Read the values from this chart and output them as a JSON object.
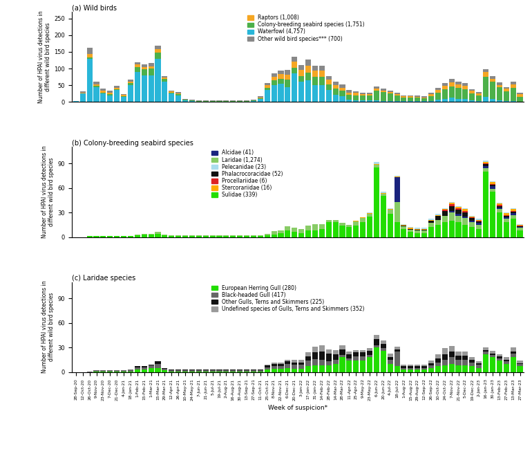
{
  "x_labels": [
    "28-Sep-20",
    "12-Oct-20",
    "26-Oct-20",
    "9-Nov-20",
    "23-Nov-20",
    "7-Dec-20",
    "21-Dec-20",
    "4-Jan-21",
    "18-Jan-21",
    "1-Feb-21",
    "15-Feb-21",
    "1-Mar-21",
    "15-Mar-21",
    "29-Mar-21",
    "12-Apr-21",
    "26-Apr-21",
    "10-May-21",
    "24-May-21",
    "7-Jun-21",
    "21-Jun-21",
    "5-Jul-21",
    "19-Jul-21",
    "2-Aug-21",
    "16-Aug-21",
    "30-Aug-21",
    "13-Sep-21",
    "27-Sep-21",
    "11-Oct-21",
    "25-Oct-21",
    "8-Nov-21",
    "22-Nov-21",
    "6-Dec-21",
    "20-Dec-21",
    "3-Jan-22",
    "17-Jan-22",
    "31-Jan-22",
    "14-Feb-22",
    "28-Feb-22",
    "14-Mar-22",
    "28-Mar-22",
    "11-Apr-22",
    "25-Apr-22",
    "9-May-22",
    "23-May-22",
    "6-Jun-22",
    "20-Jun-22",
    "4-Jul-22",
    "18-Jul-22",
    "1-Aug-22",
    "15-Aug-22",
    "29-Aug-22",
    "12-Sep-22",
    "26-Sep-22",
    "10-Oct-22",
    "24-Oct-22",
    "7-Nov-22",
    "21-Nov-22",
    "5-Dec-22",
    "19-Dec-22",
    "2-Jan-23",
    "16-Jan-23",
    "30-Jan-23",
    "13-Feb-23",
    "27-Feb-23",
    "13-Mar-23",
    "27-Mar-23"
  ],
  "panel_a": {
    "waterfowl": [
      3,
      25,
      130,
      45,
      25,
      20,
      35,
      15,
      50,
      90,
      80,
      80,
      130,
      60,
      25,
      20,
      5,
      3,
      1,
      1,
      1,
      1,
      1,
      1,
      1,
      1,
      3,
      8,
      35,
      50,
      55,
      45,
      85,
      60,
      65,
      50,
      50,
      35,
      22,
      18,
      6,
      5,
      4,
      4,
      4,
      3,
      3,
      2,
      3,
      3,
      3,
      3,
      3,
      6,
      8,
      12,
      8,
      8,
      4,
      2,
      15,
      8,
      4,
      2,
      2,
      1
    ],
    "colony": [
      0,
      0,
      3,
      3,
      3,
      3,
      3,
      3,
      6,
      15,
      18,
      20,
      18,
      8,
      3,
      3,
      1,
      1,
      1,
      1,
      1,
      1,
      1,
      1,
      1,
      1,
      1,
      3,
      8,
      15,
      15,
      22,
      18,
      18,
      22,
      26,
      26,
      18,
      18,
      15,
      15,
      15,
      15,
      15,
      30,
      26,
      22,
      18,
      10,
      10,
      10,
      8,
      15,
      22,
      30,
      34,
      34,
      30,
      22,
      18,
      60,
      52,
      40,
      30,
      40,
      15
    ],
    "raptors": [
      0,
      3,
      10,
      5,
      6,
      5,
      5,
      3,
      5,
      7,
      7,
      7,
      10,
      5,
      3,
      3,
      1,
      1,
      1,
      1,
      1,
      1,
      1,
      1,
      1,
      1,
      1,
      3,
      7,
      10,
      14,
      14,
      18,
      18,
      22,
      18,
      18,
      14,
      10,
      10,
      7,
      7,
      5,
      5,
      7,
      5,
      5,
      4,
      4,
      4,
      3,
      3,
      5,
      8,
      10,
      13,
      10,
      10,
      7,
      5,
      14,
      10,
      7,
      7,
      10,
      7
    ],
    "other": [
      0,
      3,
      20,
      7,
      5,
      5,
      5,
      3,
      5,
      7,
      7,
      10,
      10,
      5,
      3,
      3,
      1,
      1,
      1,
      1,
      1,
      1,
      1,
      1,
      1,
      1,
      1,
      3,
      7,
      10,
      10,
      14,
      14,
      14,
      18,
      14,
      14,
      10,
      10,
      10,
      7,
      5,
      4,
      4,
      5,
      5,
      4,
      3,
      3,
      3,
      3,
      3,
      5,
      7,
      8,
      10,
      8,
      8,
      5,
      4,
      10,
      8,
      7,
      5,
      8,
      5
    ]
  },
  "panel_b": {
    "sulidae": [
      0,
      0,
      1,
      1,
      1,
      1,
      1,
      1,
      1,
      2,
      3,
      3,
      4,
      2,
      1,
      1,
      1,
      1,
      1,
      1,
      1,
      1,
      1,
      1,
      1,
      1,
      1,
      1,
      2,
      3,
      5,
      8,
      6,
      5,
      8,
      8,
      10,
      18,
      18,
      14,
      12,
      14,
      18,
      25,
      85,
      50,
      28,
      18,
      10,
      6,
      5,
      5,
      12,
      15,
      18,
      20,
      18,
      15,
      12,
      10,
      80,
      55,
      30,
      18,
      22,
      8
    ],
    "laridae": [
      0,
      0,
      0,
      0,
      0,
      0,
      0,
      0,
      0,
      1,
      1,
      1,
      2,
      1,
      1,
      1,
      1,
      1,
      1,
      1,
      1,
      1,
      1,
      1,
      1,
      1,
      1,
      1,
      2,
      4,
      3,
      5,
      5,
      5,
      6,
      8,
      6,
      3,
      3,
      3,
      3,
      5,
      5,
      3,
      3,
      3,
      5,
      25,
      3,
      3,
      3,
      3,
      5,
      6,
      8,
      10,
      8,
      8,
      6,
      5,
      4,
      4,
      4,
      4,
      5,
      3
    ],
    "alcidae": [
      0,
      0,
      0,
      0,
      0,
      0,
      0,
      0,
      0,
      0,
      0,
      0,
      0,
      0,
      0,
      0,
      0,
      0,
      0,
      0,
      0,
      0,
      0,
      0,
      0,
      0,
      0,
      0,
      0,
      0,
      0,
      0,
      0,
      0,
      0,
      0,
      0,
      0,
      0,
      0,
      0,
      0,
      0,
      0,
      0,
      0,
      0,
      30,
      0,
      0,
      0,
      0,
      0,
      0,
      0,
      2,
      2,
      2,
      2,
      2,
      3,
      3,
      2,
      2,
      2,
      1
    ],
    "phalacro": [
      0,
      0,
      0,
      0,
      0,
      0,
      0,
      0,
      0,
      0,
      0,
      0,
      0,
      0,
      0,
      0,
      0,
      0,
      0,
      0,
      0,
      0,
      0,
      0,
      0,
      0,
      0,
      0,
      0,
      0,
      0,
      0,
      0,
      0,
      0,
      0,
      0,
      0,
      0,
      0,
      0,
      0,
      0,
      0,
      0,
      0,
      0,
      0,
      1,
      1,
      1,
      1,
      3,
      5,
      6,
      6,
      5,
      5,
      3,
      2,
      2,
      2,
      2,
      2,
      2,
      1
    ],
    "procellariidae": [
      0,
      0,
      0,
      0,
      0,
      0,
      0,
      0,
      0,
      0,
      0,
      0,
      0,
      0,
      0,
      0,
      0,
      0,
      0,
      0,
      0,
      0,
      0,
      0,
      0,
      0,
      0,
      0,
      0,
      0,
      0,
      0,
      0,
      0,
      0,
      0,
      0,
      0,
      0,
      0,
      0,
      0,
      0,
      0,
      0,
      0,
      0,
      0,
      0,
      0,
      0,
      0,
      0,
      0,
      1,
      2,
      2,
      2,
      1,
      1,
      1,
      1,
      1,
      1,
      1,
      1
    ],
    "stercorariidae": [
      0,
      0,
      0,
      0,
      0,
      0,
      0,
      0,
      0,
      0,
      0,
      0,
      0,
      0,
      0,
      0,
      0,
      0,
      0,
      0,
      0,
      0,
      0,
      0,
      0,
      0,
      0,
      0,
      0,
      0,
      0,
      0,
      0,
      0,
      0,
      0,
      0,
      0,
      0,
      0,
      0,
      1,
      1,
      1,
      1,
      1,
      1,
      1,
      1,
      1,
      1,
      1,
      1,
      1,
      1,
      2,
      2,
      2,
      1,
      1,
      2,
      2,
      2,
      2,
      2,
      1
    ],
    "pelecanidae": [
      0,
      0,
      0,
      0,
      0,
      0,
      0,
      0,
      0,
      0,
      0,
      0,
      0,
      0,
      0,
      0,
      0,
      0,
      0,
      0,
      0,
      0,
      0,
      0,
      0,
      0,
      0,
      0,
      0,
      0,
      0,
      0,
      0,
      0,
      0,
      0,
      0,
      0,
      0,
      0,
      0,
      0,
      0,
      1,
      3,
      1,
      1,
      1,
      1,
      1,
      1,
      1,
      1,
      1,
      1,
      1,
      1,
      1,
      1,
      1,
      1,
      1,
      1,
      1,
      1,
      1
    ]
  },
  "panel_c": {
    "herring_gull": [
      0,
      0,
      0,
      1,
      1,
      1,
      1,
      1,
      1,
      3,
      3,
      5,
      5,
      2,
      1,
      1,
      1,
      1,
      1,
      1,
      1,
      1,
      1,
      1,
      1,
      1,
      1,
      1,
      3,
      4,
      4,
      5,
      4,
      4,
      7,
      8,
      8,
      8,
      10,
      18,
      14,
      14,
      14,
      18,
      30,
      26,
      10,
      7,
      3,
      3,
      3,
      3,
      5,
      7,
      8,
      10,
      8,
      8,
      7,
      5,
      22,
      18,
      14,
      10,
      18,
      7
    ],
    "blackheaded": [
      0,
      0,
      1,
      1,
      1,
      1,
      1,
      1,
      2,
      3,
      3,
      3,
      5,
      2,
      1,
      1,
      1,
      1,
      1,
      1,
      1,
      1,
      1,
      1,
      1,
      1,
      1,
      1,
      3,
      3,
      3,
      5,
      5,
      5,
      7,
      8,
      7,
      5,
      5,
      3,
      3,
      5,
      5,
      3,
      3,
      3,
      5,
      18,
      2,
      2,
      2,
      2,
      3,
      5,
      7,
      8,
      7,
      7,
      5,
      4,
      3,
      3,
      3,
      3,
      5,
      3
    ],
    "other_gulls": [
      0,
      0,
      0,
      0,
      0,
      0,
      0,
      0,
      0,
      1,
      1,
      1,
      3,
      1,
      1,
      1,
      1,
      1,
      1,
      1,
      1,
      1,
      1,
      1,
      1,
      1,
      1,
      1,
      2,
      3,
      3,
      3,
      3,
      3,
      5,
      8,
      10,
      10,
      7,
      7,
      5,
      5,
      5,
      5,
      7,
      5,
      3,
      3,
      2,
      2,
      2,
      2,
      3,
      5,
      7,
      7,
      5,
      5,
      3,
      2,
      2,
      2,
      2,
      2,
      2,
      1
    ],
    "undefined": [
      0,
      0,
      0,
      0,
      0,
      0,
      0,
      0,
      0,
      0,
      0,
      0,
      0,
      0,
      0,
      0,
      0,
      0,
      0,
      0,
      0,
      0,
      0,
      0,
      0,
      0,
      0,
      0,
      1,
      2,
      2,
      2,
      3,
      3,
      5,
      7,
      8,
      5,
      5,
      5,
      3,
      3,
      3,
      3,
      5,
      5,
      5,
      3,
      2,
      2,
      2,
      2,
      3,
      5,
      7,
      7,
      5,
      5,
      3,
      2,
      3,
      3,
      3,
      3,
      5,
      3
    ]
  },
  "colors": {
    "waterfowl": "#29B6D8",
    "colony": "#4CB04A",
    "raptors": "#F5A623",
    "other": "#888888",
    "sulidae": "#22DD00",
    "laridae": "#88CC66",
    "alcidae": "#1A237E",
    "phalacro": "#111111",
    "procellariidae": "#DD2222",
    "stercorariidae": "#FFAA00",
    "pelecanidae": "#AADDEE",
    "herring_gull": "#22DD00",
    "blackheaded": "#666666",
    "other_gulls": "#111111",
    "undefined": "#999999"
  },
  "panel_a_yticks": [
    0,
    50,
    100,
    150,
    200,
    250
  ],
  "panel_b_yticks": [
    0,
    30,
    60,
    90
  ],
  "panel_c_yticks": [
    0,
    30,
    60,
    90
  ]
}
